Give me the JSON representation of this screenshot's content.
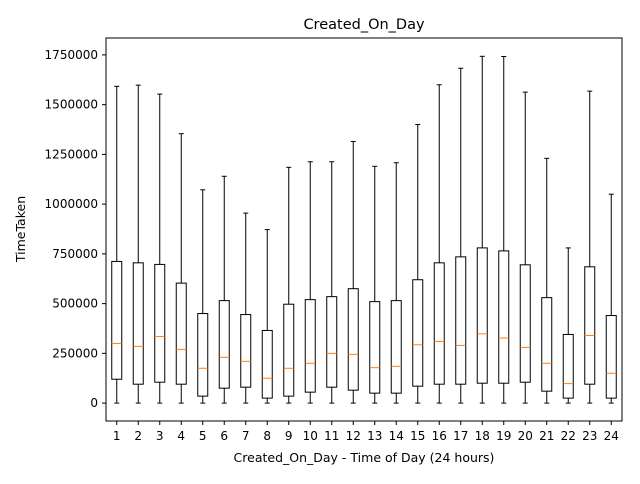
{
  "chart_data": {
    "type": "box",
    "title": "Created_On_Day",
    "xlabel": "Created_On_Day - Time of Day (24 hours)",
    "ylabel": "TimeTaken",
    "ylim": [
      -90000,
      1835000
    ],
    "yticks": [
      0,
      250000,
      500000,
      750000,
      1000000,
      1250000,
      1500000,
      1750000
    ],
    "ytick_labels": [
      "0",
      "250000",
      "500000",
      "750000",
      "1000000",
      "1250000",
      "1500000",
      "1750000"
    ],
    "categories": [
      "1",
      "2",
      "3",
      "4",
      "5",
      "6",
      "7",
      "8",
      "9",
      "10",
      "11",
      "12",
      "13",
      "14",
      "15",
      "16",
      "17",
      "18",
      "19",
      "20",
      "21",
      "22",
      "23",
      "24"
    ],
    "grid": false,
    "legend": "none",
    "colors": {
      "box": "#000000",
      "median": "#ff7f0e",
      "background": "#ffffff"
    },
    "series": [
      {
        "boxes": [
          {
            "min": 0,
            "q1": 120000,
            "median": 300000,
            "q3": 712000,
            "max": 1592000
          },
          {
            "min": 0,
            "q1": 95000,
            "median": 285000,
            "q3": 705000,
            "max": 1598000
          },
          {
            "min": 0,
            "q1": 105000,
            "median": 335000,
            "q3": 697000,
            "max": 1553000
          },
          {
            "min": 0,
            "q1": 95000,
            "median": 270000,
            "q3": 603000,
            "max": 1354000
          },
          {
            "min": 0,
            "q1": 35000,
            "median": 175000,
            "q3": 450000,
            "max": 1072000
          },
          {
            "min": 0,
            "q1": 75000,
            "median": 230000,
            "q3": 515000,
            "max": 1140000
          },
          {
            "min": 0,
            "q1": 80000,
            "median": 210000,
            "q3": 445000,
            "max": 955000
          },
          {
            "min": 0,
            "q1": 25000,
            "median": 125000,
            "q3": 365000,
            "max": 872000
          },
          {
            "min": 0,
            "q1": 35000,
            "median": 175000,
            "q3": 497000,
            "max": 1185000
          },
          {
            "min": 0,
            "q1": 55000,
            "median": 200000,
            "q3": 520000,
            "max": 1213000
          },
          {
            "min": 0,
            "q1": 80000,
            "median": 250000,
            "q3": 535000,
            "max": 1213000
          },
          {
            "min": 0,
            "q1": 65000,
            "median": 245000,
            "q3": 575000,
            "max": 1315000
          },
          {
            "min": 0,
            "q1": 50000,
            "median": 178000,
            "q3": 510000,
            "max": 1190000
          },
          {
            "min": 0,
            "q1": 50000,
            "median": 185000,
            "q3": 515000,
            "max": 1208000
          },
          {
            "min": 0,
            "q1": 85000,
            "median": 293000,
            "q3": 620000,
            "max": 1400000
          },
          {
            "min": 0,
            "q1": 95000,
            "median": 310000,
            "q3": 705000,
            "max": 1600000
          },
          {
            "min": 0,
            "q1": 95000,
            "median": 290000,
            "q3": 735000,
            "max": 1683000
          },
          {
            "min": 0,
            "q1": 100000,
            "median": 348000,
            "q3": 780000,
            "max": 1743000
          },
          {
            "min": 0,
            "q1": 100000,
            "median": 327000,
            "q3": 765000,
            "max": 1742000
          },
          {
            "min": 0,
            "q1": 105000,
            "median": 280000,
            "q3": 695000,
            "max": 1563000
          },
          {
            "min": 0,
            "q1": 60000,
            "median": 200000,
            "q3": 530000,
            "max": 1230000
          },
          {
            "min": 0,
            "q1": 25000,
            "median": 98000,
            "q3": 345000,
            "max": 780000
          },
          {
            "min": 0,
            "q1": 95000,
            "median": 340000,
            "q3": 685000,
            "max": 1568000
          },
          {
            "min": 0,
            "q1": 25000,
            "median": 150000,
            "q3": 440000,
            "max": 1050000
          }
        ]
      }
    ]
  }
}
